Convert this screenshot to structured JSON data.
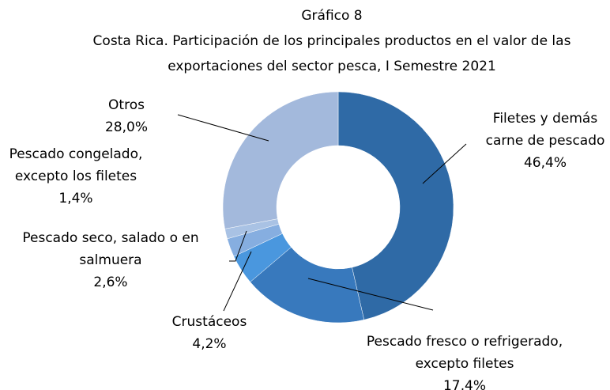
{
  "chart_data": {
    "type": "doughnut",
    "title": "Gráfico 8",
    "subtitle": [
      "Costa Rica.  Participación de los principales productos en el valor de las",
      "exportaciones del sector pesca, I Semestre 2021"
    ],
    "categories": [
      "Filetes y demás\ncarne de pescado",
      "Pescado fresco o refrigerado,\nexcepto filetes",
      "Crustáceos",
      "Pescado seco, salado o en\nsalmuera",
      "Pescado congelado,\nexcepto los filetes",
      "Otros"
    ],
    "values": [
      46.4,
      17.4,
      4.2,
      2.6,
      1.4,
      28.0
    ],
    "value_labels": [
      "46,4%",
      "17,4%",
      "4,2%",
      "2,6%",
      "1,4%",
      "28,0%"
    ],
    "colors": [
      "#2f6aa6",
      "#3879bd",
      "#4a97de",
      "#86aee0",
      "#a9c2e4",
      "#a3b9dc"
    ]
  }
}
